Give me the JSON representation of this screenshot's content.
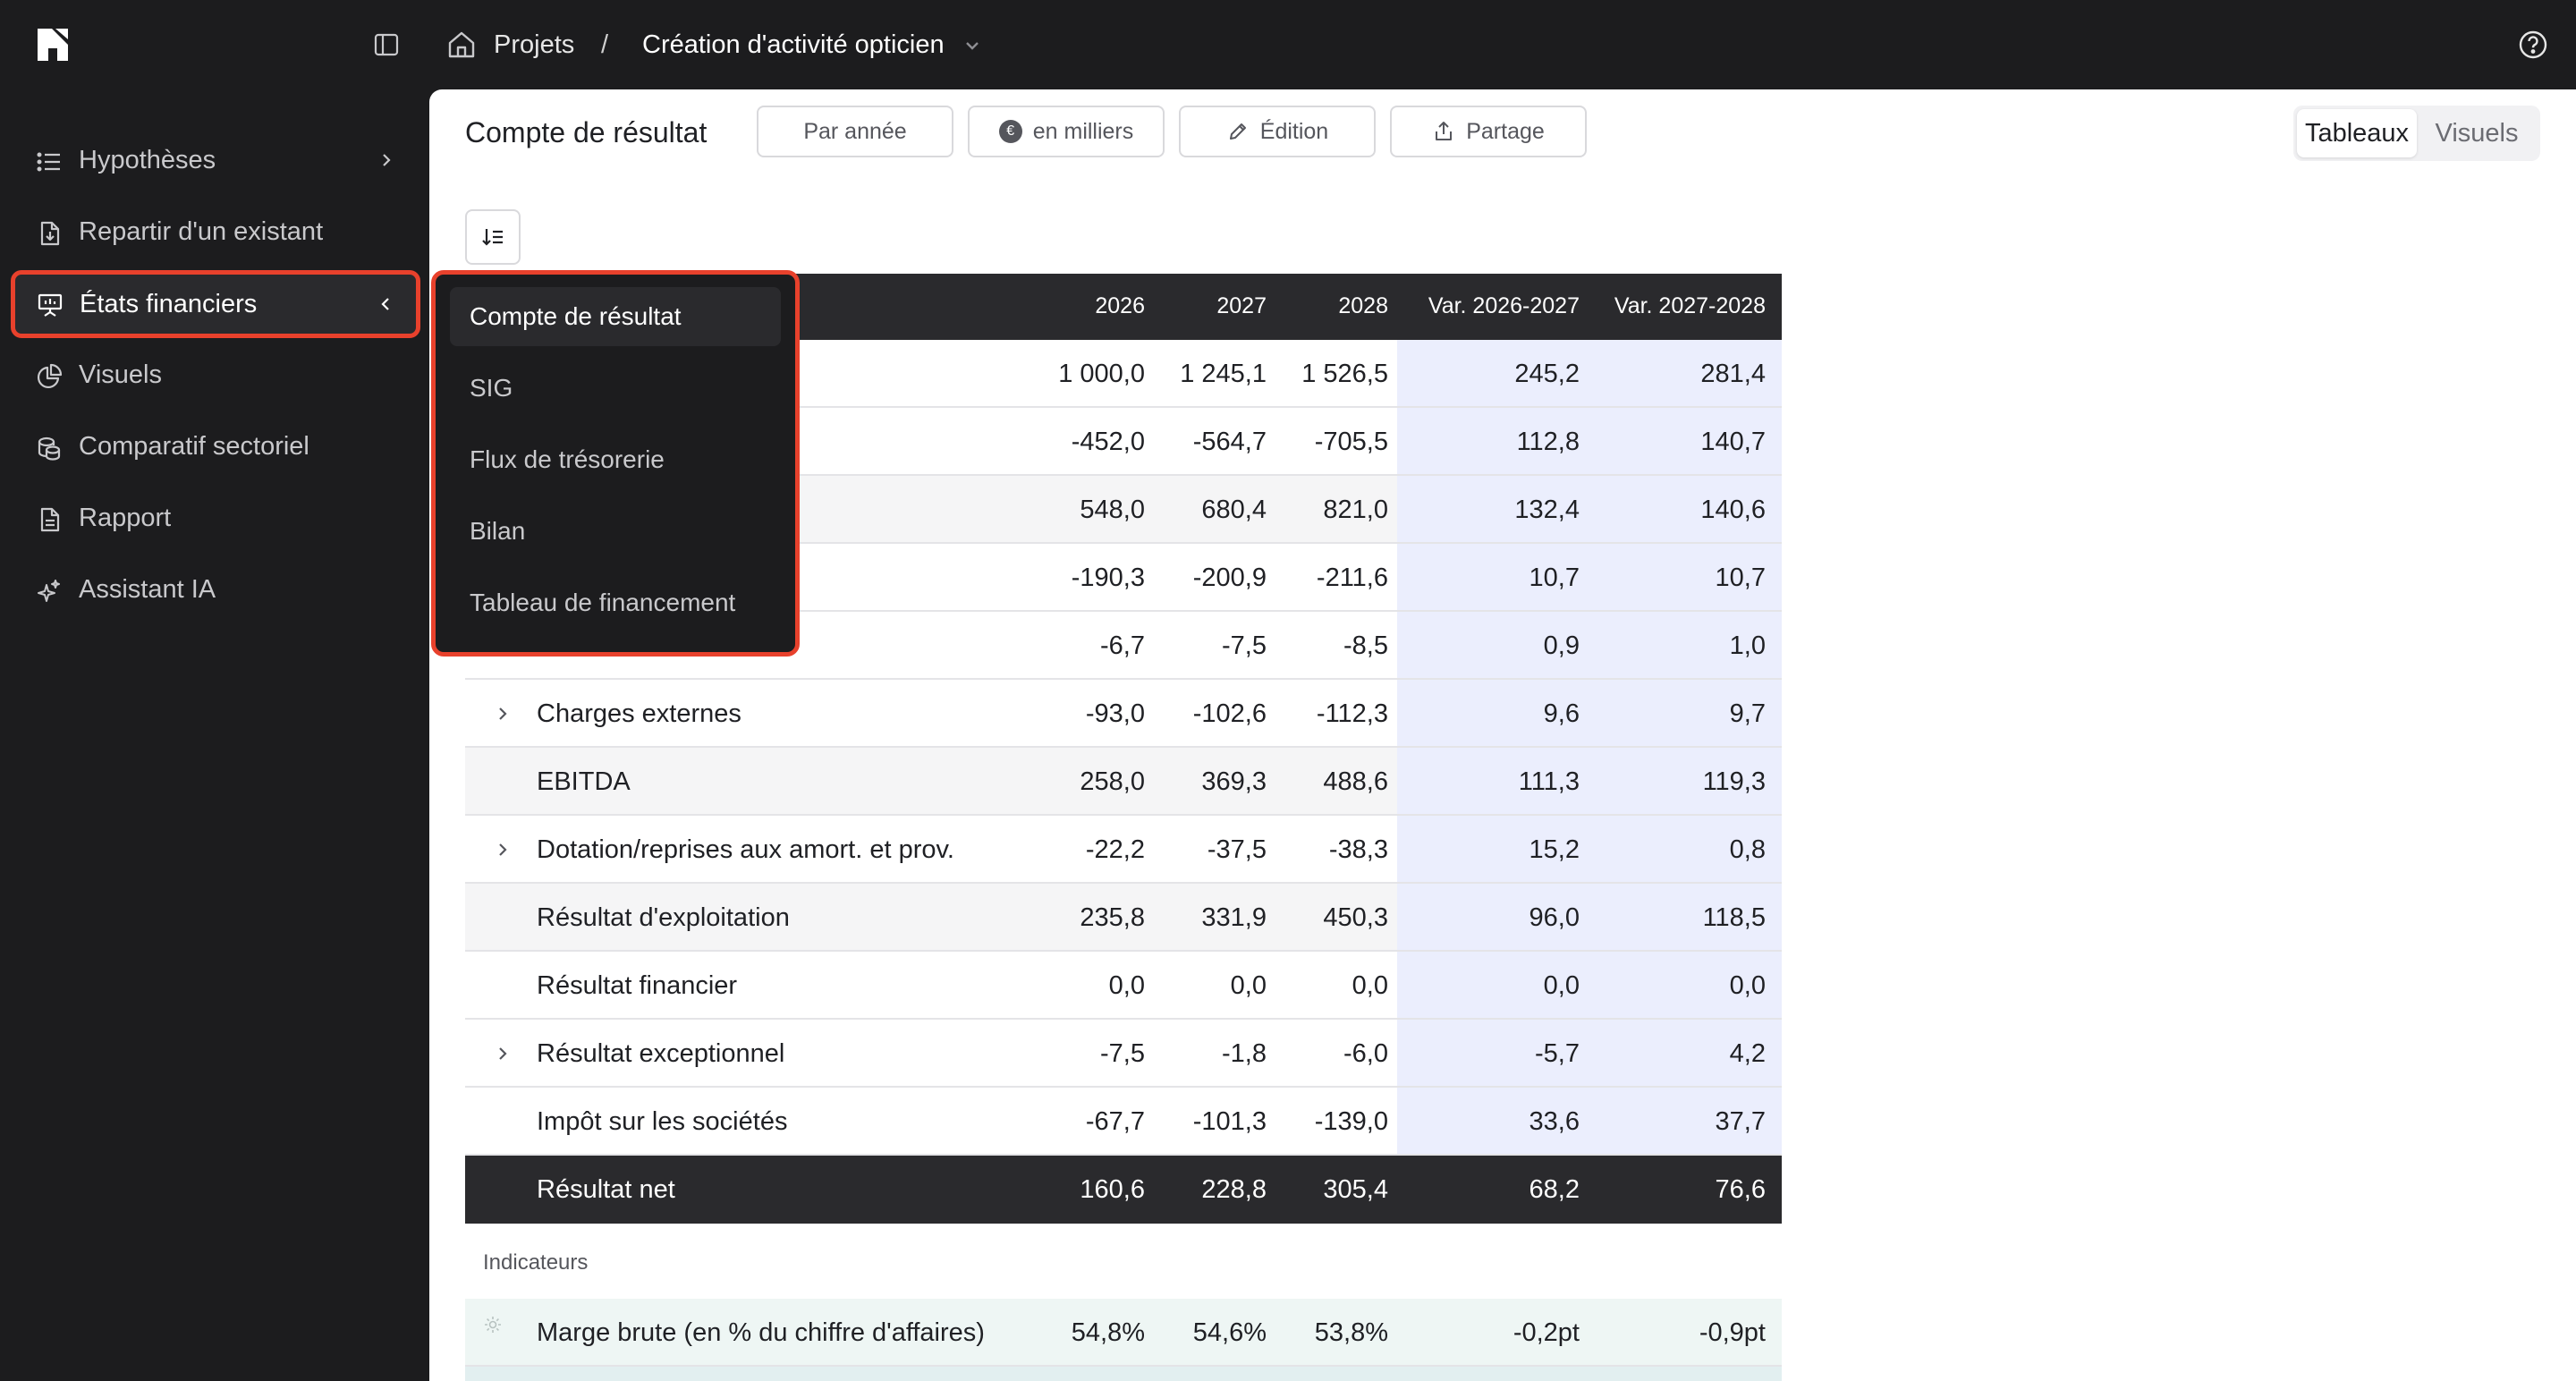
{
  "topbar": {
    "breadcrumb_root": "Projets",
    "breadcrumb_sep": "/",
    "breadcrumb_current": "Création d'activité opticien"
  },
  "sidebar": {
    "items": [
      {
        "label": "Hypothèses",
        "icon": "list-icon"
      },
      {
        "label": "Repartir d'un existant",
        "icon": "file-import-icon"
      },
      {
        "label": "États financiers",
        "icon": "presentation-icon"
      },
      {
        "label": "Visuels",
        "icon": "pie-chart-icon"
      },
      {
        "label": "Comparatif sectoriel",
        "icon": "coins-icon"
      },
      {
        "label": "Rapport",
        "icon": "document-icon"
      },
      {
        "label": "Assistant IA",
        "icon": "sparkles-icon"
      }
    ]
  },
  "toolbar": {
    "title": "Compte de résultat",
    "period_label": "Par année",
    "unit_label": "en milliers",
    "unit_symbol": "€",
    "edit_label": "Édition",
    "share_label": "Partage",
    "view_tables": "Tableaux",
    "view_visuals": "Visuels"
  },
  "dropdown": {
    "items": [
      "Compte de résultat",
      "SIG",
      "Flux de trésorerie",
      "Bilan",
      "Tableau de financement"
    ],
    "selected": "Compte de résultat"
  },
  "table": {
    "headers": [
      "2026",
      "2027",
      "2028",
      "Var. 2026-2027",
      "Var. 2027-2028"
    ],
    "rows": [
      {
        "name": "",
        "vals": [
          "1 000,0",
          "1 245,1",
          "1 526,5",
          "245,2",
          "281,4"
        ]
      },
      {
        "name": "",
        "vals": [
          "-452,0",
          "-564,7",
          "-705,5",
          "112,8",
          "140,7"
        ]
      },
      {
        "name": "",
        "vals": [
          "548,0",
          "680,4",
          "821,0",
          "132,4",
          "140,6"
        ]
      },
      {
        "name": "",
        "vals": [
          "-190,3",
          "-200,9",
          "-211,6",
          "10,7",
          "10,7"
        ]
      },
      {
        "name": "",
        "vals": [
          "-6,7",
          "-7,5",
          "-8,5",
          "0,9",
          "1,0"
        ]
      },
      {
        "name": "Charges externes",
        "vals": [
          "-93,0",
          "-102,6",
          "-112,3",
          "9,6",
          "9,7"
        ]
      },
      {
        "name": "EBITDA",
        "vals": [
          "258,0",
          "369,3",
          "488,6",
          "111,3",
          "119,3"
        ]
      },
      {
        "name": "Dotation/reprises aux amort. et prov.",
        "vals": [
          "-22,2",
          "-37,5",
          "-38,3",
          "15,2",
          "0,8"
        ]
      },
      {
        "name": "Résultat d'exploitation",
        "vals": [
          "235,8",
          "331,9",
          "450,3",
          "96,0",
          "118,5"
        ]
      },
      {
        "name": "Résultat financier",
        "vals": [
          "0,0",
          "0,0",
          "0,0",
          "0,0",
          "0,0"
        ]
      },
      {
        "name": "Résultat exceptionnel",
        "vals": [
          "-7,5",
          "-1,8",
          "-6,0",
          "-5,7",
          "4,2"
        ]
      },
      {
        "name": "Impôt sur les sociétés",
        "vals": [
          "-67,7",
          "-101,3",
          "-139,0",
          "33,6",
          "37,7"
        ]
      },
      {
        "name": "Résultat net",
        "vals": [
          "160,6",
          "228,8",
          "305,4",
          "68,2",
          "76,6"
        ]
      }
    ],
    "indicators_label": "Indicateurs",
    "indicators": [
      {
        "name": "Marge brute (en % du chiffre d'affaires)",
        "vals": [
          "54,8%",
          "54,6%",
          "53,8%",
          "-0,2pt",
          "-0,9pt"
        ]
      }
    ]
  },
  "colors": {
    "accent_highlight": "#e8412c",
    "sidebar_bg": "#1c1c1e",
    "variance_bg": "#ebeefd",
    "indicator_bg": "#eef6f4"
  }
}
